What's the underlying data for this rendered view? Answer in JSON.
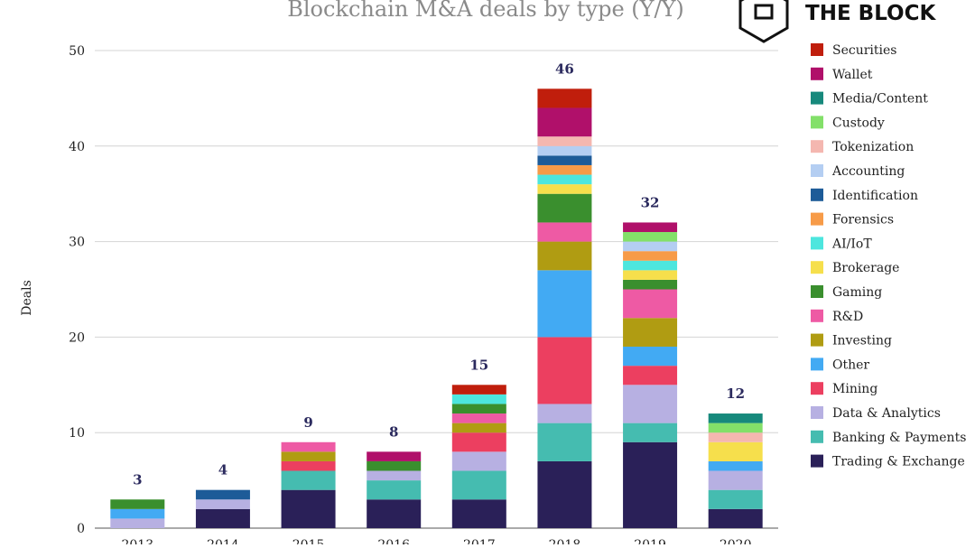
{
  "brand": {
    "name": "THE BLOCK"
  },
  "chart_data": {
    "type": "bar",
    "stacked": true,
    "title": "Blockchain M&A deals by type (Y/Y)",
    "xlabel": "",
    "ylabel": "Deals",
    "ylim": [
      0,
      50
    ],
    "yticks": [
      0,
      10,
      20,
      30,
      40,
      50
    ],
    "grid": true,
    "legend_position": "right",
    "categories": [
      "2013",
      "2014",
      "2015",
      "2016",
      "2017",
      "2018",
      "2019",
      "2020"
    ],
    "totals": [
      3,
      4,
      9,
      8,
      15,
      46,
      32,
      12
    ],
    "series": [
      {
        "name": "Trading & Exchange",
        "color": "#2a2058",
        "values": [
          0,
          2,
          4,
          3,
          3,
          7,
          9,
          2
        ]
      },
      {
        "name": "Banking & Payments",
        "color": "#45bcb0",
        "values": [
          0,
          0,
          2,
          2,
          3,
          4,
          2,
          2
        ]
      },
      {
        "name": "Data & Analytics",
        "color": "#b7b0e2",
        "values": [
          1,
          1,
          0,
          1,
          2,
          2,
          4,
          2
        ]
      },
      {
        "name": "Mining",
        "color": "#ec3f60",
        "values": [
          0,
          0,
          1,
          0,
          2,
          7,
          2,
          0
        ]
      },
      {
        "name": "Other",
        "color": "#42aaf3",
        "values": [
          1,
          0,
          0,
          0,
          0,
          7,
          2,
          1
        ]
      },
      {
        "name": "Investing",
        "color": "#b09c12",
        "values": [
          0,
          0,
          1,
          0,
          1,
          3,
          3,
          0
        ]
      },
      {
        "name": "R&D",
        "color": "#ee5aa4",
        "values": [
          0,
          0,
          1,
          0,
          1,
          2,
          3,
          0
        ]
      },
      {
        "name": "Gaming",
        "color": "#3a8f2e",
        "values": [
          1,
          0,
          0,
          1,
          1,
          3,
          1,
          0
        ]
      },
      {
        "name": "Brokerage",
        "color": "#f6df4c",
        "values": [
          0,
          0,
          0,
          0,
          0,
          1,
          1,
          2
        ]
      },
      {
        "name": "AI/IoT",
        "color": "#4de6de",
        "values": [
          0,
          0,
          0,
          0,
          1,
          1,
          1,
          0
        ]
      },
      {
        "name": "Forensics",
        "color": "#f79b48",
        "values": [
          0,
          0,
          0,
          0,
          0,
          1,
          1,
          0
        ]
      },
      {
        "name": "Identification",
        "color": "#1d5b98",
        "values": [
          0,
          1,
          0,
          0,
          0,
          1,
          0,
          0
        ]
      },
      {
        "name": "Accounting",
        "color": "#b4cef2",
        "values": [
          0,
          0,
          0,
          0,
          0,
          1,
          1,
          0
        ]
      },
      {
        "name": "Tokenization",
        "color": "#f4b7b0",
        "values": [
          0,
          0,
          0,
          0,
          0,
          1,
          0,
          1
        ]
      },
      {
        "name": "Custody",
        "color": "#83e069",
        "values": [
          0,
          0,
          0,
          0,
          0,
          0,
          1,
          1
        ]
      },
      {
        "name": "Media/Content",
        "color": "#17897c",
        "values": [
          0,
          0,
          0,
          0,
          0,
          0,
          0,
          1
        ]
      },
      {
        "name": "Wallet",
        "color": "#b0106a",
        "values": [
          0,
          0,
          0,
          1,
          0,
          3,
          1,
          0
        ]
      },
      {
        "name": "Securities",
        "color": "#c01e0c",
        "values": [
          0,
          0,
          0,
          0,
          1,
          2,
          0,
          0
        ]
      }
    ]
  }
}
